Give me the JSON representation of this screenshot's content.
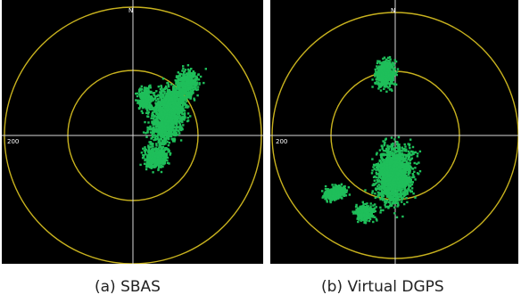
{
  "panels": [
    {
      "id": "a",
      "caption": "(a) SBAS",
      "north_label": "N",
      "range_label": "200"
    },
    {
      "id": "b",
      "caption": "(b) Virtual DGPS",
      "north_label": "N",
      "range_label": "200"
    }
  ],
  "colors": {
    "background": "#000000",
    "ring": "#c8b21e",
    "axis": "#d9d9d9",
    "fix_points": "#1fbf5a"
  }
}
